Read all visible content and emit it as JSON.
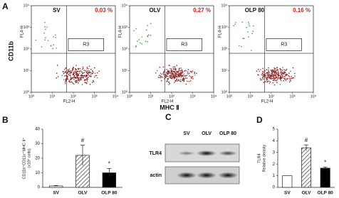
{
  "figure": {
    "panels": [
      "A",
      "B",
      "C",
      "D"
    ],
    "ylabel": "CD11b",
    "xlabel": "MHC Ⅱ"
  },
  "blot": {
    "lanes": [
      "SV",
      "OLV",
      "OLP 80"
    ],
    "rows": [
      "TLR4",
      "actin"
    ]
  },
  "chart_data": [
    {
      "type": "flow",
      "title": "SV",
      "annotation": "0.03 %",
      "gate": "R3",
      "xlabel": "FL2-H",
      "ylabel": "FL4-H",
      "log_scale": true,
      "xlim": [
        1,
        10000
      ],
      "ylim": [
        1,
        10000
      ],
      "xticks": [
        {
          "value": 1,
          "label": "10⁰"
        },
        {
          "value": 10,
          "label": "10¹"
        },
        {
          "value": 100,
          "label": "10²"
        },
        {
          "value": 1000,
          "label": "10³"
        },
        {
          "value": 10000,
          "label": "10⁴"
        }
      ],
      "yticks": [
        {
          "value": 1,
          "label": "10⁰"
        },
        {
          "value": 10,
          "label": "10¹"
        },
        {
          "value": 100,
          "label": "10²"
        },
        {
          "value": 1000,
          "label": "10³"
        },
        {
          "value": 10000,
          "label": "10⁴"
        }
      ]
    },
    {
      "type": "flow",
      "title": "OLV",
      "annotation": "0.27 %",
      "gate": "R3",
      "xlabel": "FL2-H",
      "ylabel": "FL4-H",
      "log_scale": true,
      "xlim": [
        1,
        10000
      ],
      "ylim": [
        1,
        10000
      ],
      "xticks": [
        {
          "value": 1,
          "label": "10⁰"
        },
        {
          "value": 10,
          "label": "10¹"
        },
        {
          "value": 100,
          "label": "10²"
        },
        {
          "value": 1000,
          "label": "10³"
        },
        {
          "value": 10000,
          "label": "10⁴"
        }
      ],
      "yticks": [
        {
          "value": 1,
          "label": "10⁰"
        },
        {
          "value": 10,
          "label": "10¹"
        },
        {
          "value": 100,
          "label": "10²"
        },
        {
          "value": 1000,
          "label": "10³"
        },
        {
          "value": 10000,
          "label": "10⁴"
        }
      ]
    },
    {
      "type": "flow",
      "title": "OLP 80",
      "annotation": "0.16 %",
      "gate": "R3",
      "xlabel": "FL2-H",
      "ylabel": "FL4-H",
      "log_scale": true,
      "xlim": [
        1,
        10000
      ],
      "ylim": [
        1,
        10000
      ],
      "xticks": [
        {
          "value": 1,
          "label": "10⁰"
        },
        {
          "value": 10,
          "label": "10¹"
        },
        {
          "value": 100,
          "label": "10²"
        },
        {
          "value": 1000,
          "label": "10³"
        },
        {
          "value": 10000,
          "label": "10⁴"
        }
      ],
      "yticks": [
        {
          "value": 1,
          "label": "10⁰"
        },
        {
          "value": 10,
          "label": "10¹"
        },
        {
          "value": 100,
          "label": "10²"
        },
        {
          "value": 1000,
          "label": "10³"
        },
        {
          "value": 10000,
          "label": "10⁴"
        }
      ]
    },
    {
      "type": "bar",
      "ylabel": [
        "CD11b⁺CD11c⁺MHC II⁺",
        "(x10⁴ cells)"
      ],
      "categories": [
        "SV",
        "OLV",
        "OLP 80"
      ],
      "values": [
        1,
        22,
        10
      ],
      "errors": [
        0.3,
        7,
        3
      ],
      "annotations": [
        null,
        "#",
        "*"
      ],
      "fills": [
        "white",
        "hatched",
        "black"
      ],
      "ylim": [
        0,
        40
      ],
      "yticks": [
        0,
        10,
        20,
        30,
        40
      ]
    },
    {
      "type": "bar",
      "ylabel": [
        "TLR4",
        "Relative density"
      ],
      "categories": [
        "SV",
        "OLV",
        "OLP 80"
      ],
      "values": [
        1,
        3.4,
        1.65
      ],
      "errors": [
        0,
        0.25,
        0.1
      ],
      "annotations": [
        null,
        "#",
        "*"
      ],
      "fills": [
        "white",
        "hatched",
        "black"
      ],
      "ylim": [
        0,
        5
      ],
      "yticks": [
        0,
        1,
        2,
        3,
        4,
        5
      ]
    }
  ]
}
